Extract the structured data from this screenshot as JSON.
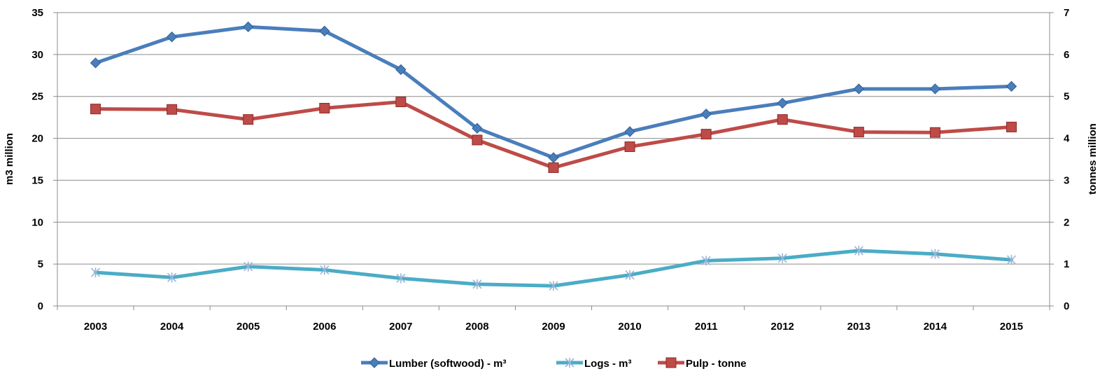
{
  "chart_data": {
    "type": "line",
    "title": "",
    "xlabel": "",
    "ylabel": "m3 million",
    "y2label": "tonnes million",
    "categories": [
      "2003",
      "2004",
      "2005",
      "2006",
      "2007",
      "2008",
      "2009",
      "2010",
      "2011",
      "2012",
      "2013",
      "2014",
      "2015"
    ],
    "ylim": [
      0,
      35
    ],
    "y_ticks": [
      0,
      5,
      10,
      15,
      20,
      25,
      30,
      35
    ],
    "y2lim": [
      0,
      7
    ],
    "y2_ticks": [
      0,
      1,
      2,
      3,
      4,
      5,
      6,
      7
    ],
    "grid": true,
    "legend_position": "bottom",
    "series": [
      {
        "name": "Lumber (softwood) - m³",
        "axis": "left",
        "color": "#4a7ebb",
        "marker": "diamond",
        "values": [
          29.0,
          32.1,
          33.3,
          32.8,
          28.2,
          21.2,
          17.7,
          20.8,
          22.9,
          24.2,
          25.9,
          25.9,
          26.2
        ]
      },
      {
        "name": "Logs - m³",
        "axis": "left",
        "color": "#4bacc6",
        "marker": "star",
        "values": [
          4.0,
          3.4,
          4.7,
          4.3,
          3.3,
          2.6,
          2.4,
          3.7,
          5.4,
          5.7,
          6.6,
          6.2,
          5.5
        ]
      },
      {
        "name": "Pulp - tonne",
        "axis": "right",
        "color": "#be4b48",
        "marker": "square",
        "values": [
          4.7,
          4.69,
          4.45,
          4.72,
          4.87,
          3.96,
          3.3,
          3.8,
          4.1,
          4.45,
          4.15,
          4.14,
          4.27
        ]
      }
    ]
  }
}
